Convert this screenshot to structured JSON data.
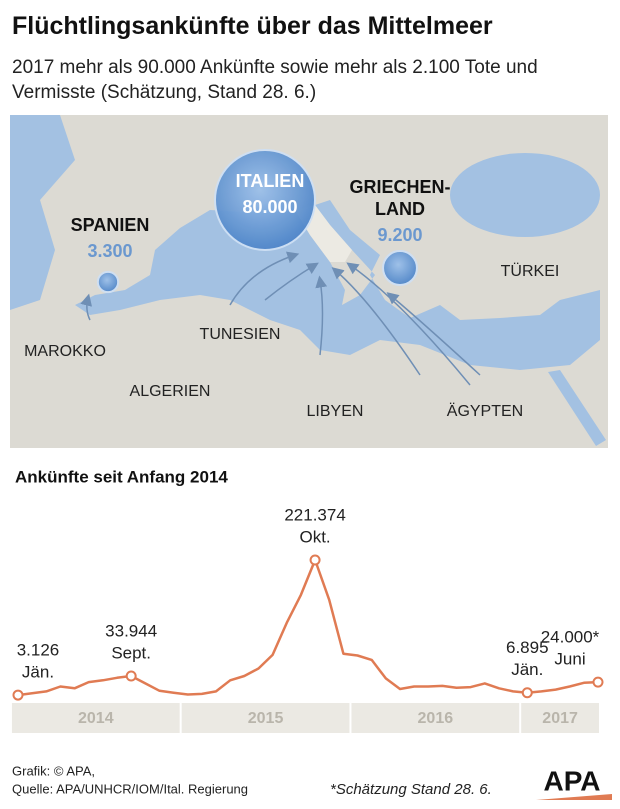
{
  "title": "Flüchtlingsankünfte über das Mittelmeer",
  "subtitle": "2017 mehr als 90.000 Ankünfte sowie mehr als 2.100 Tote und Vermisste (Schätzung, Stand 28. 6.)",
  "map": {
    "bubbles": [
      {
        "name_lines": [
          "SPANIEN"
        ],
        "value": 3300,
        "value_label": "3.300"
      },
      {
        "name_lines": [
          "ITALIEN"
        ],
        "value": 80000,
        "value_label": "80.000"
      },
      {
        "name_lines": [
          "GRIECHEN-",
          "LAND"
        ],
        "value": 9200,
        "value_label": "9.200"
      }
    ],
    "countries": [
      "MAROKKO",
      "ALGERIEN",
      "TUNESIEN",
      "LIBYEN",
      "ÄGYPTEN",
      "TÜRKEI"
    ]
  },
  "chart_data": {
    "type": "line",
    "title": "Ankünfte seit Anfang 2014",
    "color": "#e07b53",
    "years": [
      "2014",
      "2015",
      "2016",
      "2017"
    ],
    "categories": [
      "Jän.",
      null,
      null,
      null,
      null,
      null,
      null,
      null,
      "Sept.",
      null,
      null,
      null,
      null,
      null,
      null,
      null,
      null,
      null,
      null,
      null,
      null,
      "Okt.",
      null,
      null,
      null,
      null,
      null,
      null,
      null,
      null,
      null,
      null,
      null,
      null,
      null,
      null,
      "Jän.",
      null,
      null,
      null,
      null,
      "Juni"
    ],
    "values": [
      3126,
      6000,
      9000,
      17000,
      14000,
      24000,
      27000,
      31000,
      33944,
      22000,
      10000,
      7000,
      4000,
      5000,
      9000,
      27000,
      34000,
      46000,
      68000,
      120000,
      165000,
      221374,
      157000,
      70000,
      67000,
      60000,
      30000,
      13000,
      17000,
      17000,
      18000,
      15000,
      16000,
      22000,
      14000,
      9000,
      6895,
      9000,
      12000,
      17000,
      23000,
      24000
    ],
    "value_labels": [
      "3.126",
      null,
      null,
      null,
      null,
      null,
      null,
      null,
      "33.944",
      null,
      null,
      null,
      null,
      null,
      null,
      null,
      null,
      null,
      null,
      null,
      null,
      "221.374",
      null,
      null,
      null,
      null,
      null,
      null,
      null,
      null,
      null,
      null,
      null,
      null,
      null,
      null,
      "6.895",
      null,
      null,
      null,
      null,
      "24.000*"
    ]
  },
  "footer": {
    "credit": "Grafik: © APA,",
    "source": "Quelle: APA/UNHCR/IOM/Ital. Regierung",
    "note": "*Schätzung Stand 28. 6.",
    "logo": "APA"
  }
}
